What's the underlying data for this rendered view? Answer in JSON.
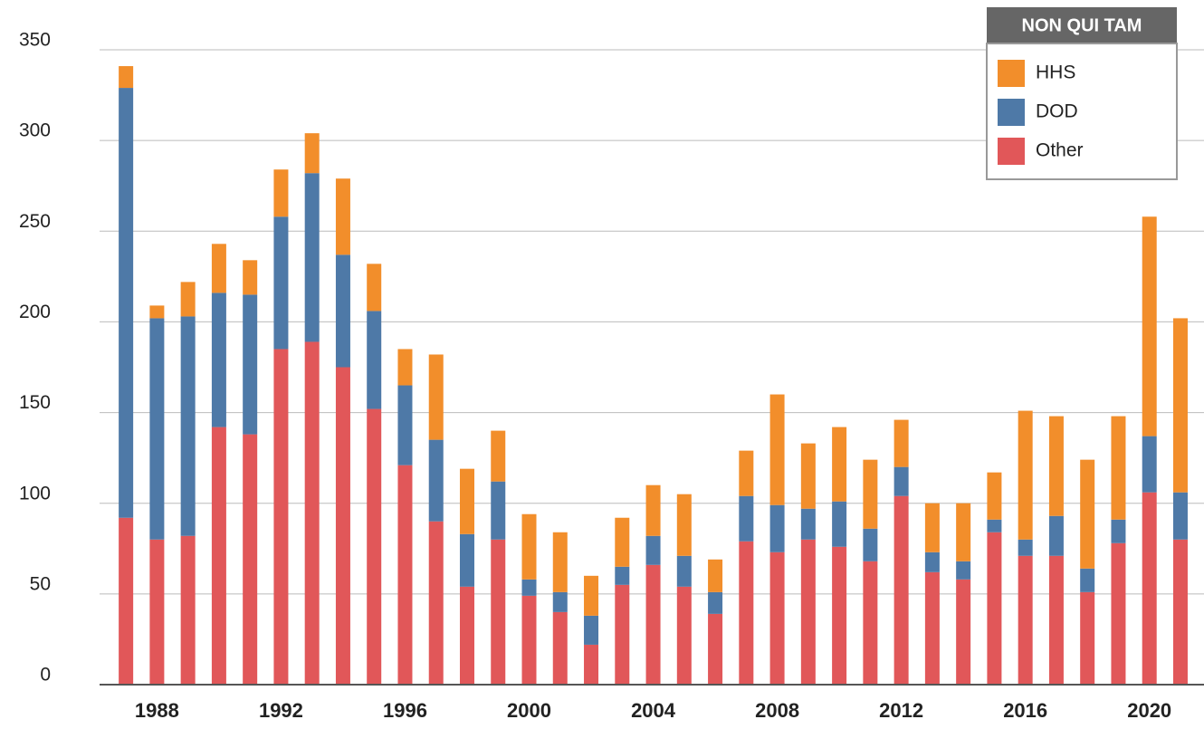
{
  "chart_data": {
    "type": "stacked_bar",
    "categories": [
      null,
      "1988",
      null,
      null,
      null,
      "1992",
      null,
      null,
      null,
      "1996",
      null,
      null,
      null,
      "2000",
      null,
      null,
      null,
      "2004",
      null,
      null,
      null,
      "2008",
      null,
      null,
      null,
      "2012",
      null,
      null,
      null,
      "2016",
      null,
      null,
      null,
      "2020",
      null
    ],
    "series": [
      {
        "name": "Other",
        "color": "#e15759",
        "values": [
          92,
          80,
          82,
          142,
          138,
          185,
          189,
          175,
          152,
          121,
          90,
          54,
          80,
          49,
          40,
          22,
          55,
          66,
          54,
          39,
          79,
          73,
          80,
          76,
          68,
          104,
          62,
          58,
          84,
          71,
          71,
          51,
          78,
          106,
          80
        ]
      },
      {
        "name": "DOD",
        "color": "#4e79a7",
        "values": [
          237,
          122,
          121,
          74,
          77,
          73,
          93,
          62,
          54,
          44,
          45,
          29,
          32,
          9,
          11,
          16,
          10,
          16,
          17,
          12,
          25,
          26,
          17,
          25,
          18,
          16,
          11,
          10,
          7,
          9,
          22,
          13,
          13,
          31,
          26
        ]
      },
      {
        "name": "HHS",
        "color": "#f28e2b",
        "values": [
          12,
          7,
          19,
          27,
          19,
          26,
          22,
          42,
          26,
          20,
          47,
          36,
          28,
          36,
          33,
          22,
          27,
          28,
          34,
          18,
          25,
          61,
          36,
          41,
          38,
          26,
          27,
          32,
          26,
          71,
          55,
          60,
          57,
          121,
          96
        ]
      }
    ],
    "legend_title": "NON QUI TAM",
    "legend_position": "upper right",
    "ylim": [
      0,
      350
    ],
    "yticks": [
      0,
      50,
      100,
      150,
      200,
      250,
      300,
      350
    ],
    "grid": true
  }
}
